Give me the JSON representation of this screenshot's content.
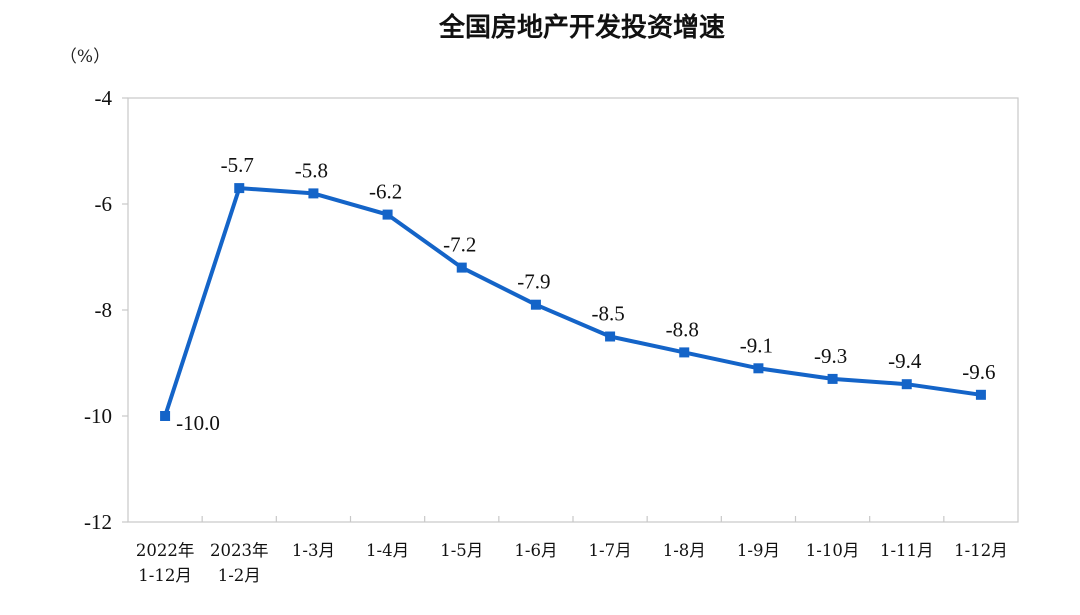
{
  "chart_data": {
    "type": "line",
    "title": "全国房地产开发投资增速",
    "unit_label": "（%）",
    "ylim": [
      -12,
      -4
    ],
    "yticks": [
      -4,
      -6,
      -8,
      -10,
      -12
    ],
    "ytick_labels": [
      "-4",
      "-6",
      "-8",
      "-10",
      "-12"
    ],
    "grid": false,
    "categories": [
      [
        "2022年",
        "1-12月"
      ],
      [
        "2023年",
        "1-2月"
      ],
      [
        "1-3月"
      ],
      [
        "1-4月"
      ],
      [
        "1-5月"
      ],
      [
        "1-6月"
      ],
      [
        "1-7月"
      ],
      [
        "1-8月"
      ],
      [
        "1-9月"
      ],
      [
        "1-10月"
      ],
      [
        "1-11月"
      ],
      [
        "1-12月"
      ]
    ],
    "series": [
      {
        "values": [
          -10.0,
          -5.7,
          -5.8,
          -6.2,
          -7.2,
          -7.9,
          -8.5,
          -8.8,
          -9.1,
          -9.3,
          -9.4,
          -9.6
        ],
        "labels": [
          "-10.0",
          "-5.7",
          "-5.8",
          "-6.2",
          "-7.2",
          "-7.9",
          "-8.5",
          "-8.8",
          "-9.1",
          "-9.3",
          "-9.4",
          "-9.6"
        ],
        "color": "#1464c8"
      }
    ]
  }
}
